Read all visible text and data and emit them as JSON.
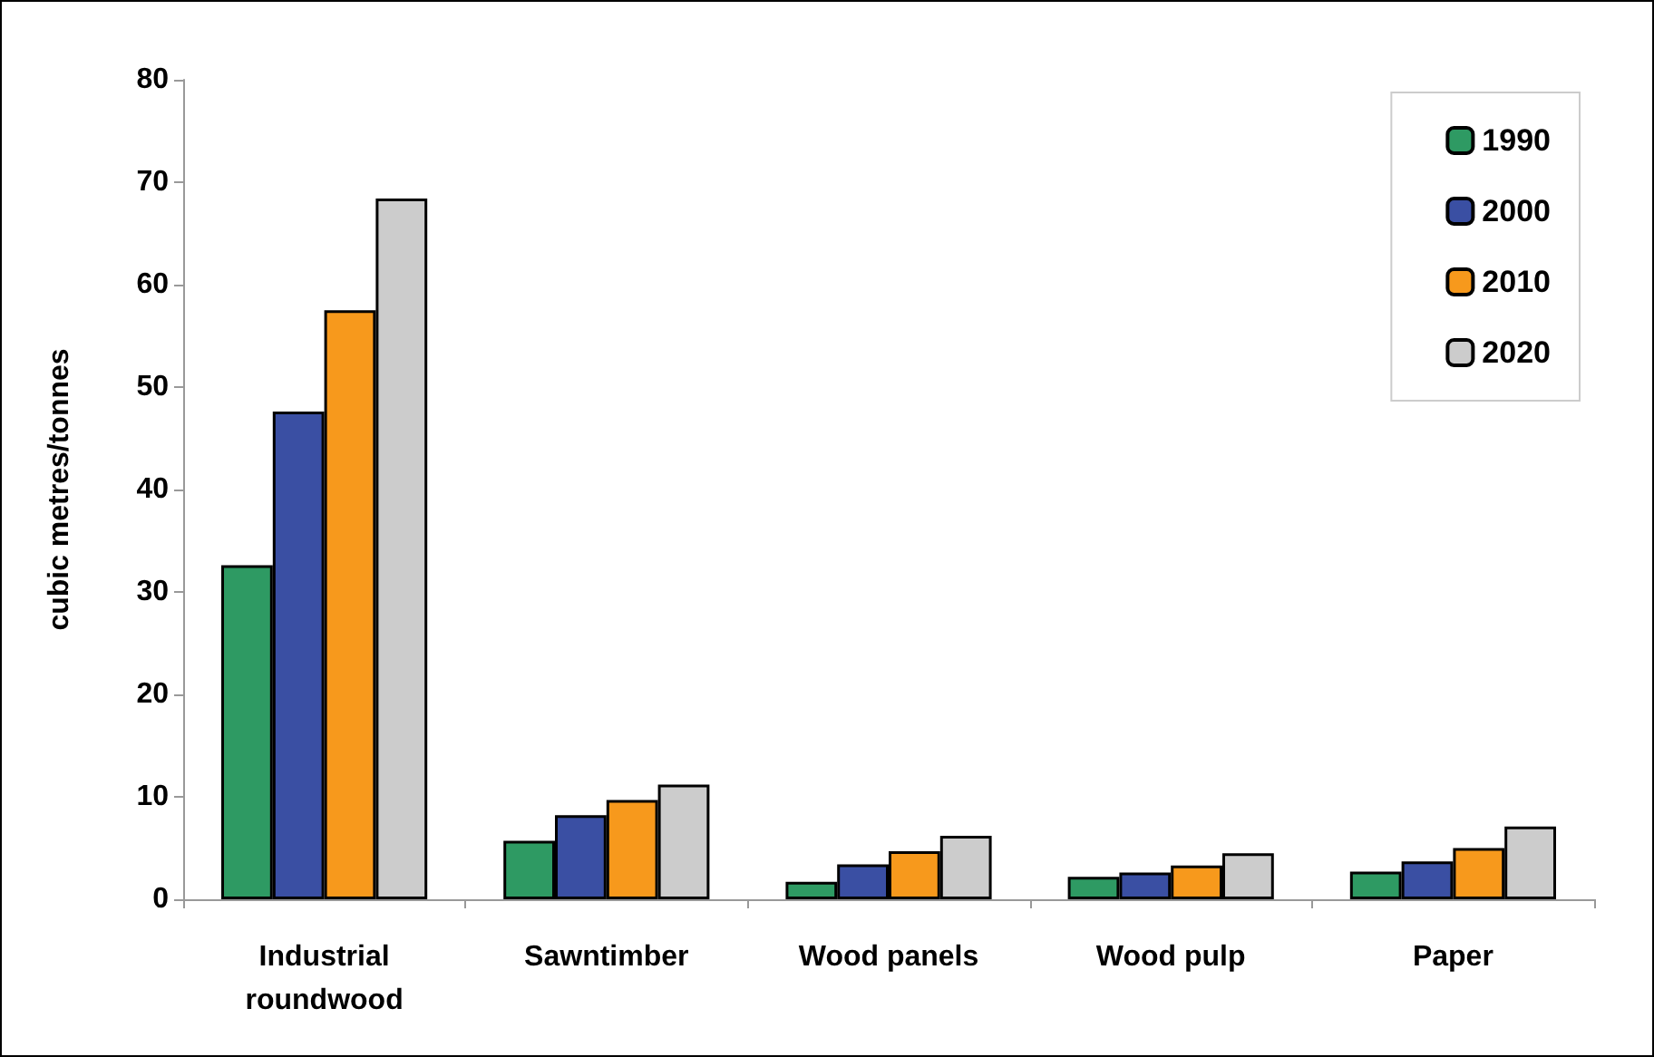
{
  "chart_data": {
    "type": "bar",
    "ylabel": "cubic metres/tonnes",
    "categories": [
      "Industrial\nroundwood",
      "Sawntimber",
      "Wood panels",
      "Wood pulp",
      "Paper"
    ],
    "series": [
      {
        "name": "1990",
        "color": "#2e9a63",
        "values": [
          32.6,
          5.7,
          1.7,
          2.2,
          2.7
        ]
      },
      {
        "name": "2000",
        "color": "#3a4fa3",
        "values": [
          47.6,
          8.2,
          3.4,
          2.6,
          3.7
        ]
      },
      {
        "name": "2010",
        "color": "#f7991c",
        "values": [
          57.5,
          9.7,
          4.7,
          3.3,
          5.0
        ]
      },
      {
        "name": "2020",
        "color": "#cccccc",
        "values": [
          68.4,
          11.2,
          6.2,
          4.5,
          7.1
        ]
      }
    ],
    "ylim": [
      0,
      80
    ],
    "yticks": [
      0,
      10,
      20,
      30,
      40,
      50,
      60,
      70,
      80
    ],
    "grid": false,
    "legend": "top right"
  }
}
